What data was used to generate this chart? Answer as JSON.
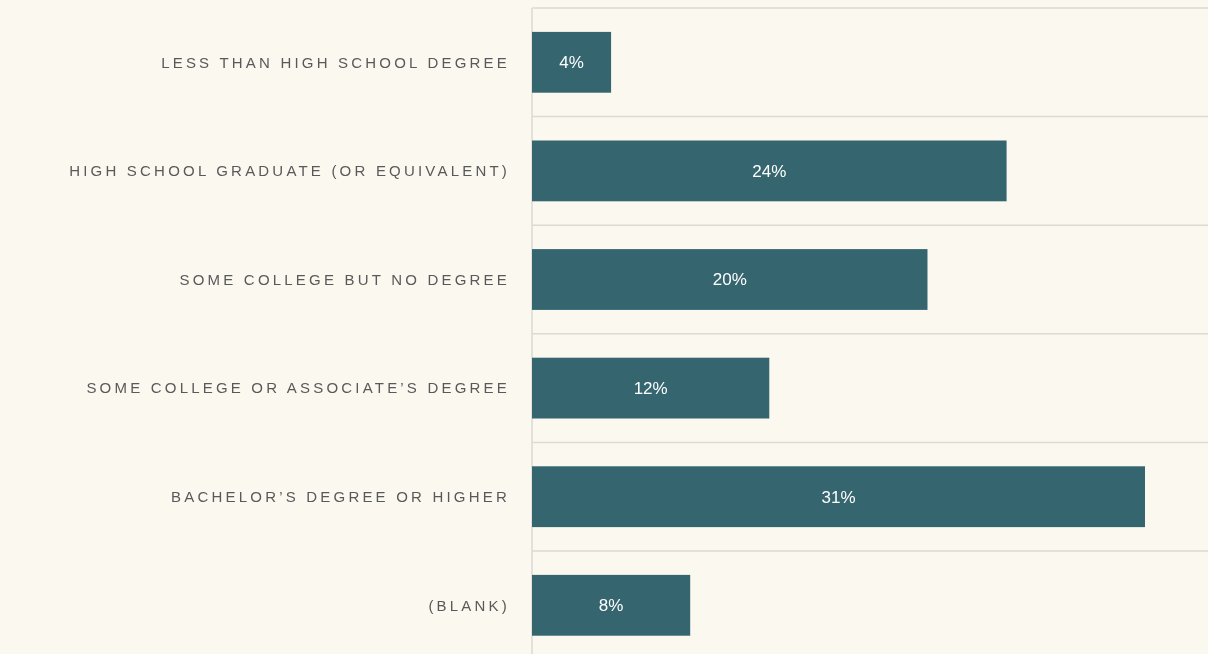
{
  "chart_data": {
    "type": "bar",
    "orientation": "horizontal",
    "categories": [
      "LESS THAN HIGH SCHOOL DEGREE",
      "HIGH SCHOOL GRADUATE (OR EQUIVALENT)",
      "SOME COLLEGE BUT NO DEGREE",
      "SOME COLLEGE OR ASSOCIATE’S DEGREE",
      "BACHELOR’S DEGREE OR HIGHER",
      "(BLANK)"
    ],
    "values": [
      4,
      24,
      20,
      12,
      31,
      8
    ],
    "value_labels": [
      "4%",
      "24%",
      "20%",
      "12%",
      "31%",
      "8%"
    ],
    "color": "#35656f",
    "grid": "y",
    "tick_labels": "y"
  }
}
